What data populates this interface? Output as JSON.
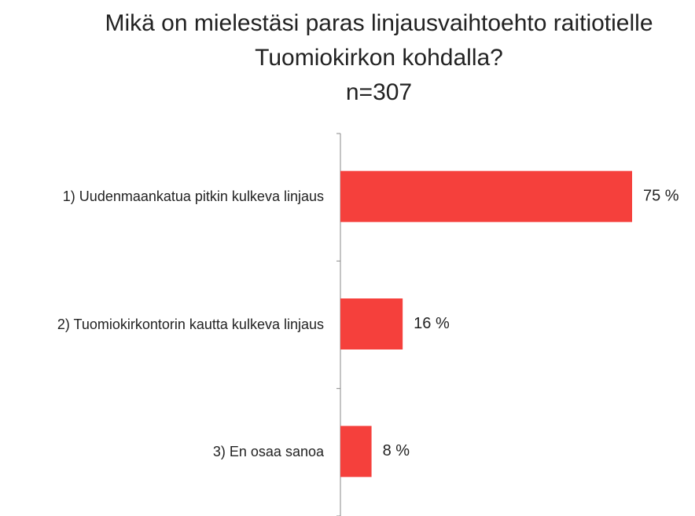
{
  "chart_data": {
    "type": "hbar",
    "title": "Mikä on mielestäsi paras linjausvaihtoehto raitiotielle Tuomiokirkon kohdalla?",
    "subtitle": "n=307",
    "categories": [
      "1) Uudenmaankatua pitkin kulkeva linjaus",
      "2) Tuomiokirkontorin kautta kulkeva linjaus",
      "3) En osaa sanoa"
    ],
    "values": [
      75,
      16,
      8
    ],
    "value_labels": [
      "75 %",
      "16 %",
      "8 %"
    ],
    "color": "#f5403c",
    "xlim": [
      0,
      75
    ]
  }
}
